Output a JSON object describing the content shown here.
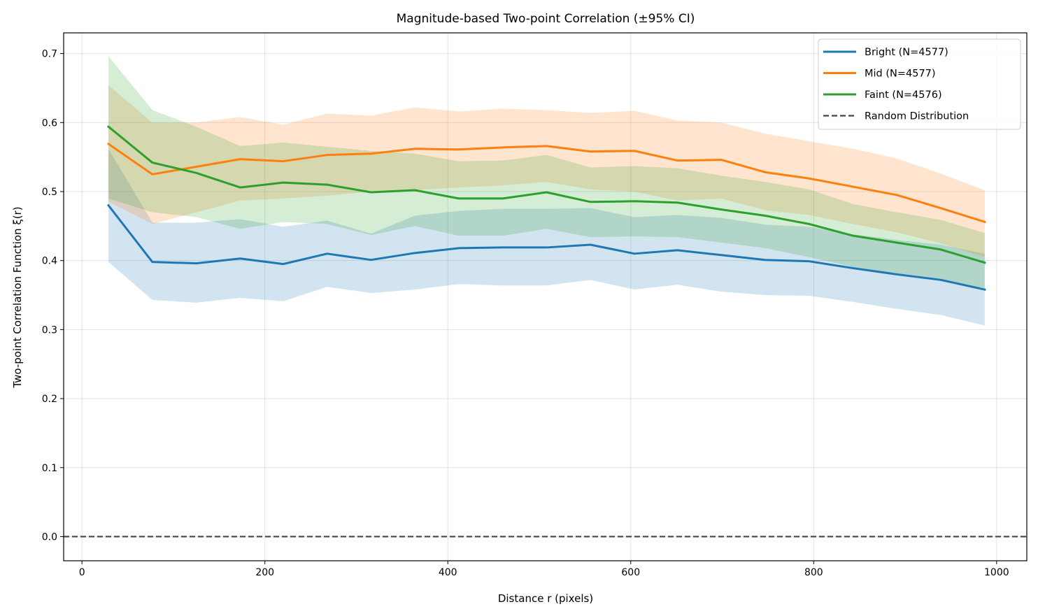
{
  "chart_data": {
    "type": "line",
    "title": "Magnitude-based Two-point Correlation (±95% CI)",
    "xlabel": "Distance r (pixels)",
    "ylabel": "Two-point Correlation Function ξ(r)",
    "xlim": [
      -20,
      1033
    ],
    "ylim": [
      -0.035,
      0.73
    ],
    "xticks": [
      0,
      200,
      400,
      600,
      800,
      1000
    ],
    "yticks": [
      0.0,
      0.1,
      0.2,
      0.3,
      0.4,
      0.5,
      0.6,
      0.7
    ],
    "xtick_labels": [
      "0",
      "200",
      "400",
      "600",
      "800",
      "1000"
    ],
    "ytick_labels": [
      "0.0",
      "0.1",
      "0.2",
      "0.3",
      "0.4",
      "0.5",
      "0.6",
      "0.7"
    ],
    "grid": true,
    "legend_position": "top-right",
    "x": [
      29,
      77,
      125,
      173,
      220,
      268,
      316,
      364,
      412,
      460,
      508,
      556,
      604,
      651,
      699,
      747,
      795,
      843,
      891,
      939,
      987
    ],
    "series": [
      {
        "name": "Bright (N=4577)",
        "color": "#1f77b4",
        "values": [
          0.48,
          0.398,
          0.396,
          0.403,
          0.395,
          0.41,
          0.401,
          0.411,
          0.418,
          0.419,
          0.419,
          0.423,
          0.41,
          0.415,
          0.408,
          0.401,
          0.399,
          0.389,
          0.38,
          0.372,
          0.358
        ],
        "ci_lower": [
          0.398,
          0.343,
          0.339,
          0.346,
          0.341,
          0.362,
          0.353,
          0.358,
          0.366,
          0.364,
          0.364,
          0.372,
          0.358,
          0.365,
          0.355,
          0.35,
          0.349,
          0.34,
          0.33,
          0.321,
          0.306
        ],
        "ci_upper": [
          0.562,
          0.455,
          0.455,
          0.46,
          0.449,
          0.458,
          0.439,
          0.465,
          0.472,
          0.475,
          0.475,
          0.476,
          0.463,
          0.466,
          0.462,
          0.452,
          0.449,
          0.438,
          0.43,
          0.423,
          0.41
        ]
      },
      {
        "name": "Mid (N=4577)",
        "color": "#ff7f0e",
        "values": [
          0.569,
          0.525,
          0.536,
          0.547,
          0.544,
          0.553,
          0.555,
          0.562,
          0.561,
          0.564,
          0.566,
          0.558,
          0.559,
          0.545,
          0.546,
          0.528,
          0.519,
          0.507,
          0.495,
          0.476,
          0.456
        ],
        "ci_lower": [
          0.485,
          0.453,
          0.47,
          0.487,
          0.49,
          0.494,
          0.5,
          0.502,
          0.506,
          0.509,
          0.514,
          0.503,
          0.5,
          0.487,
          0.49,
          0.473,
          0.466,
          0.453,
          0.441,
          0.425,
          0.405
        ],
        "ci_upper": [
          0.654,
          0.6,
          0.6,
          0.608,
          0.597,
          0.613,
          0.61,
          0.622,
          0.616,
          0.62,
          0.618,
          0.614,
          0.617,
          0.603,
          0.6,
          0.584,
          0.573,
          0.562,
          0.548,
          0.526,
          0.502
        ]
      },
      {
        "name": "Faint (N=4576)",
        "color": "#2ca02c",
        "values": [
          0.594,
          0.542,
          0.527,
          0.506,
          0.513,
          0.51,
          0.499,
          0.502,
          0.49,
          0.49,
          0.499,
          0.485,
          0.486,
          0.484,
          0.474,
          0.465,
          0.453,
          0.436,
          0.426,
          0.416,
          0.397
        ],
        "ci_lower": [
          0.49,
          0.47,
          0.463,
          0.446,
          0.456,
          0.453,
          0.437,
          0.45,
          0.436,
          0.436,
          0.446,
          0.434,
          0.435,
          0.434,
          0.426,
          0.418,
          0.405,
          0.391,
          0.381,
          0.371,
          0.36
        ],
        "ci_upper": [
          0.696,
          0.618,
          0.594,
          0.566,
          0.571,
          0.565,
          0.559,
          0.555,
          0.544,
          0.545,
          0.553,
          0.535,
          0.537,
          0.534,
          0.523,
          0.514,
          0.503,
          0.482,
          0.47,
          0.459,
          0.44
        ]
      }
    ],
    "reference_line": {
      "name": "Random Distribution",
      "y": 0.0,
      "color": "#444444",
      "style": "dashed"
    }
  }
}
